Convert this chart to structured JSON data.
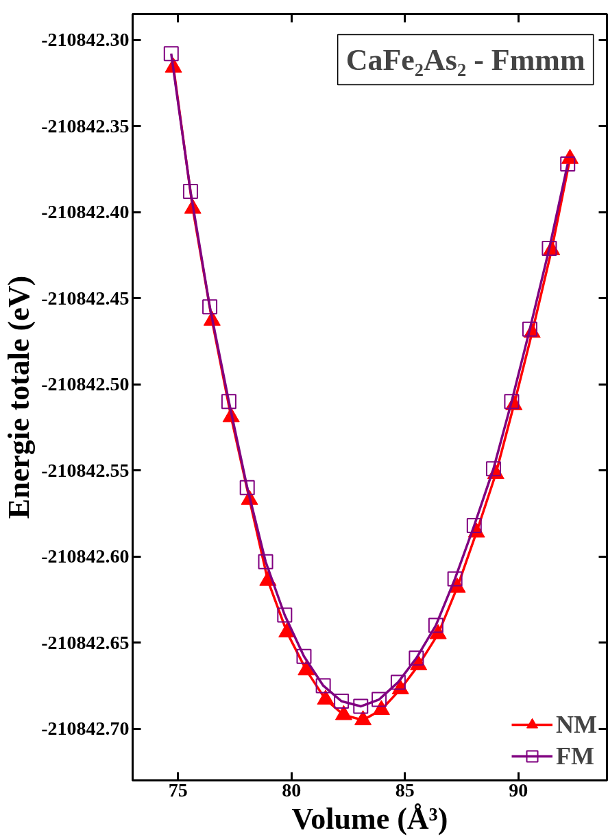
{
  "chart_data": {
    "type": "line",
    "title": "CaFe₂As₂ - Fmmm",
    "xlabel": "Volume (Å³)",
    "ylabel": "Energie totale (eV)",
    "x": [
      74.7,
      75.55,
      76.4,
      77.24,
      78.05,
      78.86,
      79.7,
      80.55,
      81.4,
      82.2,
      83.05,
      83.86,
      84.7,
      85.5,
      86.36,
      87.2,
      88.05,
      88.9,
      89.7,
      90.5,
      91.36,
      92.17
    ],
    "series": [
      {
        "name": "NM",
        "color": "#ff0000",
        "marker": "triangle",
        "x": [
          74.8,
          75.65,
          76.5,
          77.34,
          78.15,
          78.96,
          79.8,
          80.65,
          81.5,
          82.3,
          83.15,
          83.96,
          84.8,
          85.6,
          86.46,
          87.3,
          88.15,
          89.0,
          89.8,
          90.6,
          91.46,
          92.27
        ],
        "values": [
          -210842.316,
          -210842.398,
          -210842.463,
          -210842.519,
          -210842.567,
          -210842.614,
          -210842.644,
          -210842.666,
          -210842.683,
          -210842.692,
          -210842.695,
          -210842.689,
          -210842.677,
          -210842.663,
          -210842.645,
          -210842.618,
          -210842.586,
          -210842.552,
          -210842.512,
          -210842.47,
          -210842.422,
          -210842.369
        ]
      },
      {
        "name": "FM",
        "color": "#800080",
        "marker": "square",
        "values": [
          -210842.308,
          -210842.388,
          -210842.455,
          -210842.51,
          -210842.56,
          -210842.603,
          -210842.634,
          -210842.658,
          -210842.675,
          -210842.684,
          -210842.687,
          -210842.683,
          -210842.673,
          -210842.659,
          -210842.64,
          -210842.613,
          -210842.582,
          -210842.549,
          -210842.51,
          -210842.468,
          -210842.421,
          -210842.372
        ]
      }
    ],
    "xlim": [
      73,
      93.9
    ],
    "ylim": [
      -210842.73,
      -210842.285
    ],
    "xticks": [
      75,
      80,
      85,
      90
    ],
    "yticks": [
      {
        "value": -210842.3,
        "label": "-210842.30"
      },
      {
        "value": -210842.35,
        "label": "-210842.35"
      },
      {
        "value": -210842.4,
        "label": "-210842.40"
      },
      {
        "value": -210842.45,
        "label": "-210842.45"
      },
      {
        "value": -210842.5,
        "label": "-210842.50"
      },
      {
        "value": -210842.55,
        "label": "-210842.55"
      },
      {
        "value": -210842.6,
        "label": "-210842.60"
      },
      {
        "value": -210842.65,
        "label": "-210842.65"
      },
      {
        "value": -210842.7,
        "label": "-210842.70"
      }
    ],
    "grid": false,
    "legend": "bottom right",
    "line_style": "solid"
  }
}
